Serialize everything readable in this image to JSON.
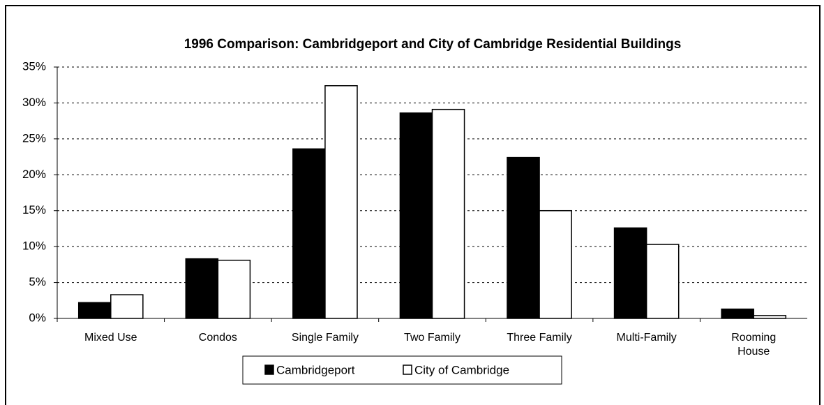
{
  "chart_data": {
    "type": "bar",
    "title": "1996 Comparison: Cambridgeport and City of Cambridge Residential Buildings",
    "categories": [
      "Mixed Use",
      "Condos",
      "Single Family",
      "Two Family",
      "Three Family",
      "Multi-Family",
      "Rooming House"
    ],
    "series": [
      {
        "name": "Cambridgeport",
        "color": "#000000",
        "values": [
          2.2,
          8.3,
          23.6,
          28.6,
          22.4,
          12.6,
          1.3
        ]
      },
      {
        "name": "City of Cambridge",
        "color": "#ffffff",
        "values": [
          3.3,
          8.1,
          32.4,
          29.1,
          15.0,
          10.3,
          0.4
        ]
      }
    ],
    "ylim": [
      0,
      35
    ],
    "yticks": [
      {
        "value": 0,
        "label": "0%"
      },
      {
        "value": 5,
        "label": "5%"
      },
      {
        "value": 10,
        "label": "10%"
      },
      {
        "value": 15,
        "label": "15%"
      },
      {
        "value": 20,
        "label": "20%"
      },
      {
        "value": 25,
        "label": "25%"
      },
      {
        "value": 30,
        "label": "30%"
      },
      {
        "value": 35,
        "label": "35%"
      }
    ],
    "grid": true,
    "legend": "bottom"
  }
}
